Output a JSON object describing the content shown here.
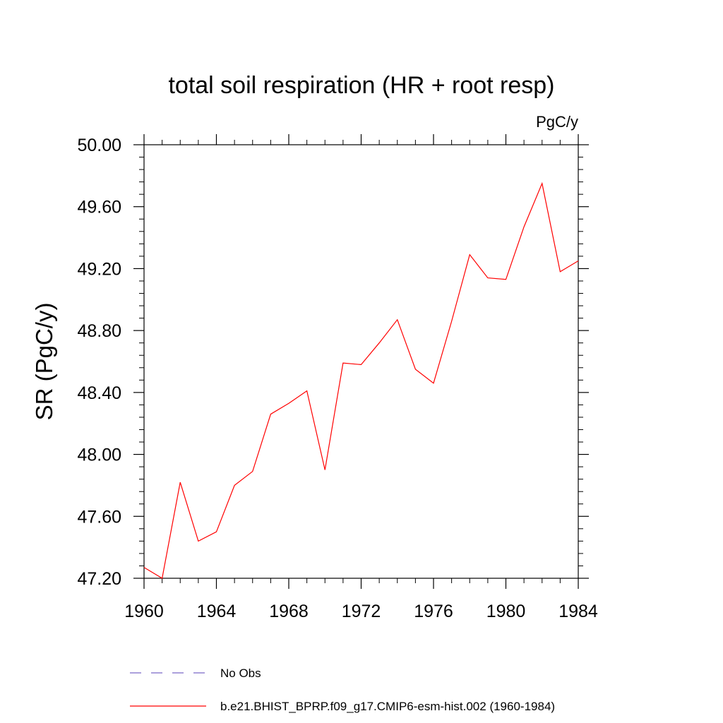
{
  "chart_data": {
    "type": "line",
    "title": "total soil respiration (HR + root resp)",
    "units": "PgC/y",
    "ylabel": "SR  (PgC/y)",
    "xlabel": "",
    "xlim": [
      1960,
      1984
    ],
    "ylim": [
      47.2,
      50.0
    ],
    "x_ticks": [
      1960,
      1964,
      1968,
      1972,
      1976,
      1980,
      1984
    ],
    "x_tick_labels": [
      "1960",
      "1964",
      "1968",
      "1972",
      "1976",
      "1980",
      "1984"
    ],
    "x_minor_step": 1,
    "y_ticks": [
      47.2,
      47.6,
      48.0,
      48.4,
      48.8,
      49.2,
      49.6,
      50.0
    ],
    "y_tick_labels": [
      "47.20",
      "47.60",
      "48.00",
      "48.40",
      "48.80",
      "49.20",
      "49.60",
      "50.00"
    ],
    "y_minor_step": 0.08,
    "grid": false,
    "legend_position": "bottom",
    "series": [
      {
        "name": "No Obs",
        "color": "#7b68c8",
        "dash": true,
        "x": [],
        "y": []
      },
      {
        "name": "b.e21.BHIST_BPRP.f09_g17.CMIP6-esm-hist.002 (1960-1984)",
        "color": "#ff0000",
        "dash": false,
        "x": [
          1960,
          1961,
          1962,
          1963,
          1964,
          1965,
          1966,
          1967,
          1968,
          1969,
          1970,
          1971,
          1972,
          1973,
          1974,
          1975,
          1976,
          1977,
          1978,
          1979,
          1980,
          1981,
          1982,
          1983,
          1984
        ],
        "y": [
          47.27,
          47.2,
          47.82,
          47.44,
          47.5,
          47.8,
          47.89,
          48.26,
          48.33,
          48.41,
          47.9,
          48.59,
          48.58,
          48.72,
          48.87,
          48.55,
          48.46,
          48.86,
          49.29,
          49.14,
          49.13,
          49.47,
          49.75,
          49.18,
          49.25
        ]
      }
    ]
  }
}
